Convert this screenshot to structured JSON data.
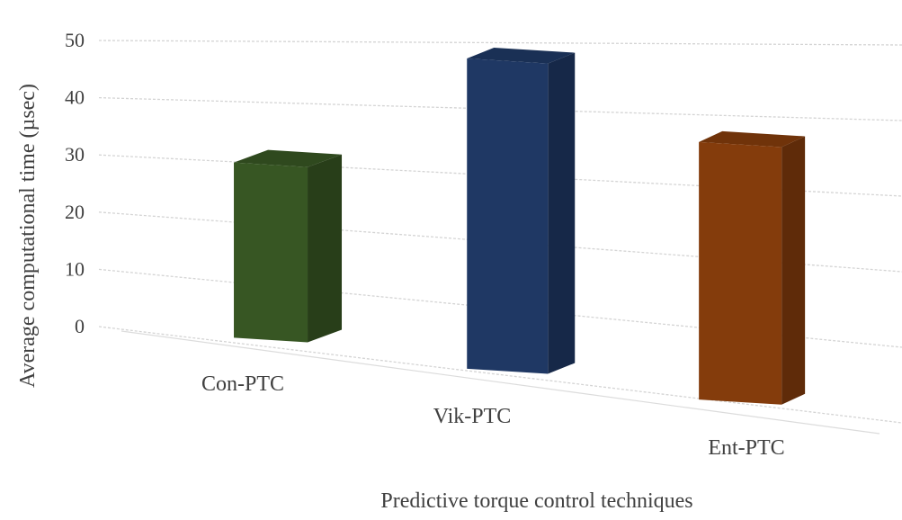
{
  "chart_data": {
    "type": "bar",
    "style": "3d-perspective-columns",
    "title": "",
    "xlabel": "Predictive torque control techniques",
    "ylabel": "Average computational time (µsec)",
    "ylim": [
      0,
      50
    ],
    "yticks": [
      "0",
      "10",
      "20",
      "30",
      "40",
      "50"
    ],
    "categories": [
      "Con-PTC",
      "Vik-PTC",
      "Ent-PTC"
    ],
    "series": [
      {
        "name": "Average computational time",
        "values": [
          29,
          47,
          36
        ],
        "colors": [
          "#375623",
          "#1f3864",
          "#843c0c"
        ]
      }
    ],
    "grid": true,
    "legend": "none"
  }
}
